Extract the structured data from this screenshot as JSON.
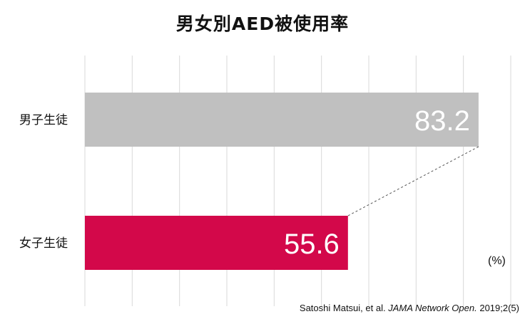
{
  "chart_data": {
    "type": "bar",
    "orientation": "horizontal",
    "title": "男女別AED被使用率",
    "categories": [
      "男子生徒",
      "女子生徒"
    ],
    "values": [
      83.2,
      55.6
    ],
    "data_labels": [
      "83.2",
      "55.6"
    ],
    "colors": [
      "#c0c0c0",
      "#d3084a"
    ],
    "xlim": [
      0,
      90
    ],
    "grid": true,
    "unit": "(%)",
    "source": {
      "authors": "Satoshi Matsui, et al.",
      "journal": "JAMA Network Open.",
      "citation": "2019;2(5)"
    }
  }
}
